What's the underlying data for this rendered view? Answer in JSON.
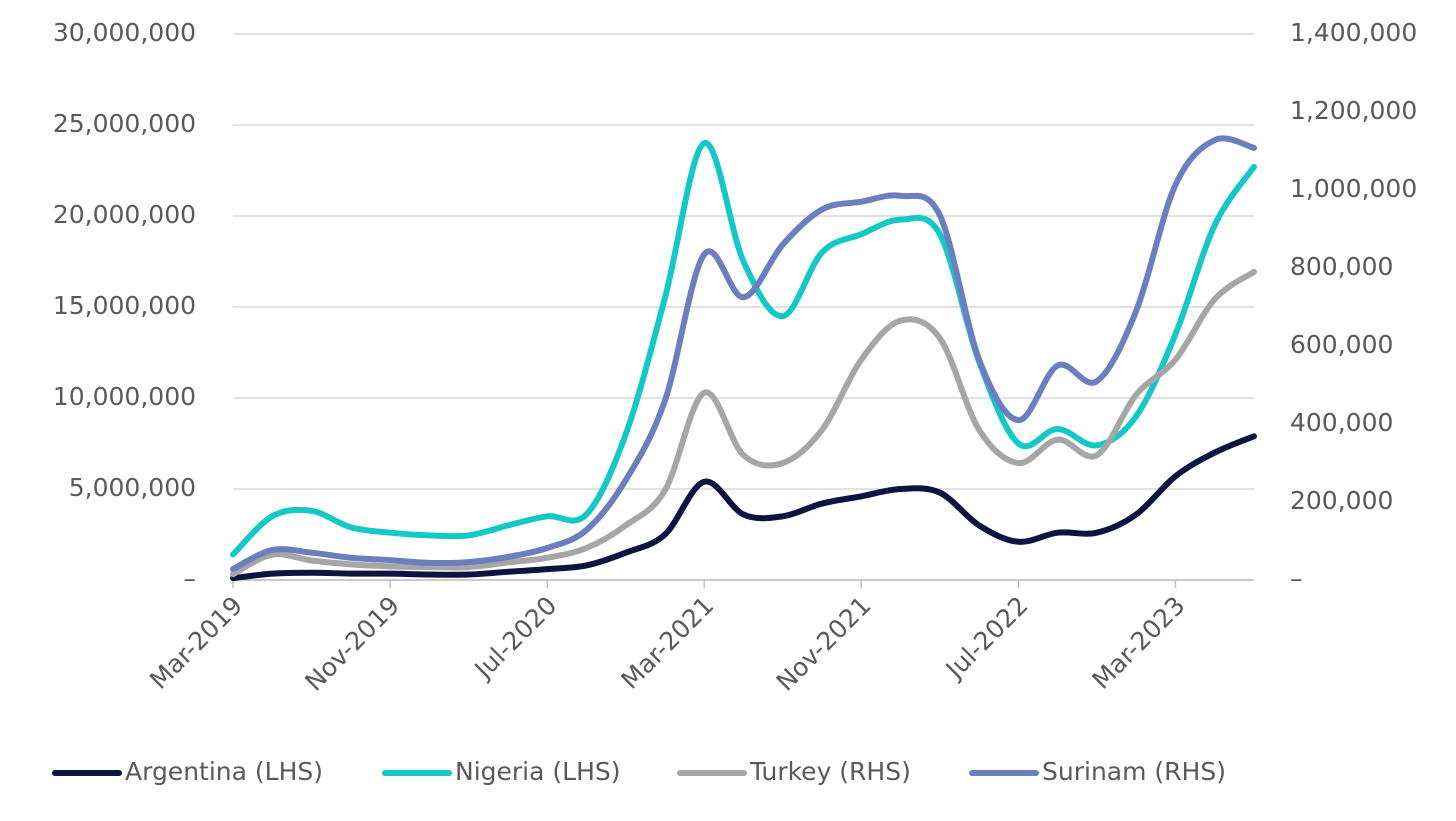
{
  "chart_data": {
    "type": "line",
    "categories": [
      "Mar-2019",
      null,
      null,
      null,
      "Nov-2019",
      null,
      null,
      null,
      "Jul-2020",
      null,
      null,
      null,
      "Mar-2021",
      null,
      null,
      null,
      "Nov-2021",
      null,
      null,
      null,
      "Jul-2022",
      null,
      null,
      null,
      "Mar-2023",
      null,
      null
    ],
    "ylim": [
      0,
      30000000
    ],
    "yticks": [
      {
        "value": 0,
        "label": "–"
      },
      {
        "value": 5000000,
        "label": "5,000,000"
      },
      {
        "value": 10000000,
        "label": "10,000,000"
      },
      {
        "value": 15000000,
        "label": "15,000,000"
      },
      {
        "value": 20000000,
        "label": "20,000,000"
      },
      {
        "value": 25000000,
        "label": "25,000,000"
      },
      {
        "value": 30000000,
        "label": "30,000,000"
      }
    ],
    "y2lim": [
      0,
      1400000
    ],
    "y2ticks": [
      {
        "value": 0,
        "label": "–"
      },
      {
        "value": 200000,
        "label": "200,000"
      },
      {
        "value": 400000,
        "label": "400,000"
      },
      {
        "value": 600000,
        "label": "600,000"
      },
      {
        "value": 800000,
        "label": "800,000"
      },
      {
        "value": 1000000,
        "label": "1,000,000"
      },
      {
        "value": 1200000,
        "label": "1,200,000"
      },
      {
        "value": 1400000,
        "label": "1,400,000"
      }
    ],
    "grid": true,
    "legend": "bottom",
    "series": [
      {
        "name": "Argentina (LHS)",
        "color": "#0d1440",
        "values": [
          100000,
          350000,
          400000,
          350000,
          350000,
          300000,
          300000,
          450000,
          600000,
          800000,
          1500000,
          2500000,
          5400000,
          3600000,
          3500000,
          4200000,
          4600000,
          5000000,
          4800000,
          3000000,
          2100000,
          2600000,
          2600000,
          3600000,
          5700000,
          7000000,
          7900000
        ]
      },
      {
        "name": "Nigeria (LHS)",
        "color": "#14c8c8",
        "values": [
          1400000,
          3500000,
          3800000,
          2900000,
          2600000,
          2450000,
          2450000,
          3000000,
          3500000,
          3600000,
          8000000,
          15500000,
          24000000,
          17500000,
          14500000,
          18000000,
          19000000,
          19800000,
          19000000,
          12000000,
          7500000,
          8300000,
          7400000,
          9000000,
          13500000,
          19500000,
          22700000
        ]
      },
      {
        "name": "Turkey (RHS)",
        "color": "#a6a6a6",
        "axis": "y2",
        "values": [
          15000,
          65000,
          50000,
          40000,
          35000,
          33000,
          33000,
          45000,
          57000,
          82000,
          140000,
          230000,
          480000,
          320000,
          300000,
          385000,
          565000,
          665000,
          620000,
          385000,
          300000,
          360000,
          320000,
          475000,
          565000,
          720000,
          790000
        ]
      },
      {
        "name": "Surinam (RHS)",
        "color": "#6b7fc0",
        "axis": "y2",
        "values": [
          28000,
          77000,
          70000,
          57000,
          51000,
          44000,
          46000,
          59000,
          82000,
          128000,
          256000,
          460000,
          835000,
          725000,
          860000,
          950000,
          970000,
          985000,
          935000,
          565000,
          410000,
          550000,
          510000,
          690000,
          1013000,
          1128000,
          1108000
        ]
      }
    ]
  }
}
